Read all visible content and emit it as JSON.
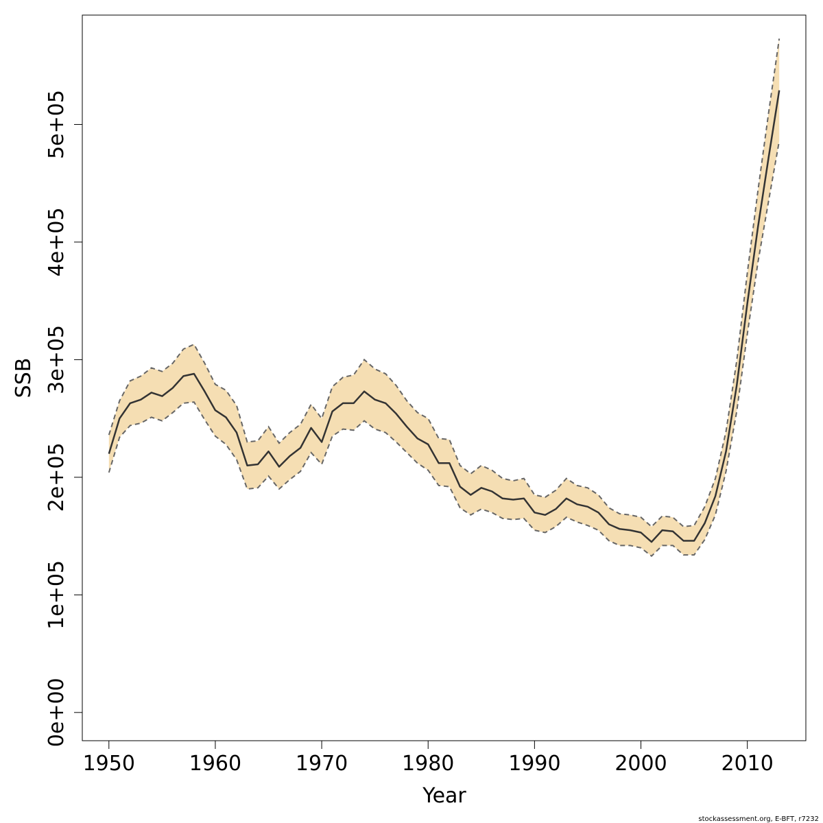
{
  "chart_data": {
    "type": "area",
    "xlabel": "Year",
    "ylabel": "SSB",
    "xlim": [
      1947.5,
      2015.5
    ],
    "ylim": [
      -24000,
      593000
    ],
    "x_ticks": [
      1950,
      1960,
      1970,
      1980,
      1990,
      2000,
      2010
    ],
    "x_tick_labels": [
      "1950",
      "1960",
      "1970",
      "1980",
      "1990",
      "2000",
      "2010"
    ],
    "y_ticks": [
      0,
      100000,
      200000,
      300000,
      400000,
      500000
    ],
    "y_tick_labels": [
      "0e+00",
      "1e+05",
      "2e+05",
      "3e+05",
      "4e+05",
      "5e+05"
    ],
    "caption": "stockassessment.org, E-BFT, r7232",
    "colors": {
      "band": "#f5deb3",
      "line": "#333333",
      "bounds": "#666666"
    },
    "x": [
      1950,
      1951,
      1952,
      1953,
      1954,
      1955,
      1956,
      1957,
      1958,
      1959,
      1960,
      1961,
      1962,
      1963,
      1964,
      1965,
      1966,
      1967,
      1968,
      1969,
      1970,
      1971,
      1972,
      1973,
      1974,
      1975,
      1976,
      1977,
      1978,
      1979,
      1980,
      1981,
      1982,
      1983,
      1984,
      1985,
      1986,
      1987,
      1988,
      1989,
      1990,
      1991,
      1992,
      1993,
      1994,
      1995,
      1996,
      1997,
      1998,
      1999,
      2000,
      2001,
      2002,
      2003,
      2004,
      2005,
      2006,
      2007,
      2008,
      2009,
      2010,
      2011,
      2012,
      2013
    ],
    "series": [
      {
        "role": "estimate",
        "values": [
          220000,
          250000,
          263000,
          266000,
          272000,
          269000,
          276000,
          286000,
          288000,
          273000,
          257000,
          251000,
          238000,
          210000,
          211000,
          222000,
          209000,
          218000,
          225000,
          242000,
          230000,
          256000,
          263000,
          263000,
          273000,
          266000,
          263000,
          254000,
          243000,
          233000,
          228000,
          212000,
          212000,
          192000,
          185000,
          191000,
          188000,
          182000,
          181000,
          182000,
          170000,
          168000,
          173000,
          182000,
          177000,
          175000,
          170000,
          160000,
          156000,
          155000,
          153000,
          145000,
          155000,
          154000,
          146000,
          146000,
          161000,
          184000,
          222000,
          278000,
          348000,
          413000,
          472000,
          529000
        ]
      },
      {
        "role": "upper",
        "values": [
          236000,
          265000,
          282000,
          286000,
          293000,
          290000,
          297000,
          309000,
          313000,
          297000,
          279000,
          274000,
          261000,
          230000,
          231000,
          243000,
          229000,
          238000,
          245000,
          262000,
          250000,
          277000,
          285000,
          287000,
          300000,
          292000,
          288000,
          278000,
          265000,
          255000,
          250000,
          233000,
          232000,
          210000,
          203000,
          210000,
          206000,
          199000,
          197000,
          199000,
          185000,
          183000,
          189000,
          199000,
          193000,
          191000,
          185000,
          174000,
          169000,
          168000,
          166000,
          158000,
          167000,
          166000,
          158000,
          159000,
          175000,
          199000,
          239000,
          299000,
          374000,
          444000,
          510000,
          573000
        ]
      },
      {
        "role": "lower",
        "values": [
          204000,
          234000,
          244000,
          246000,
          251000,
          248000,
          255000,
          263000,
          264000,
          249000,
          235000,
          228000,
          215000,
          190000,
          191000,
          201000,
          190000,
          198000,
          205000,
          221000,
          211000,
          235000,
          241000,
          240000,
          248000,
          241000,
          238000,
          230000,
          221000,
          212000,
          206000,
          193000,
          192000,
          174000,
          168000,
          173000,
          170000,
          165000,
          164000,
          165000,
          155000,
          153000,
          158000,
          166000,
          162000,
          159000,
          155000,
          146000,
          142000,
          142000,
          140000,
          133000,
          142000,
          142000,
          134000,
          134000,
          147000,
          168000,
          205000,
          256000,
          322000,
          383000,
          435000,
          486000
        ]
      }
    ]
  }
}
